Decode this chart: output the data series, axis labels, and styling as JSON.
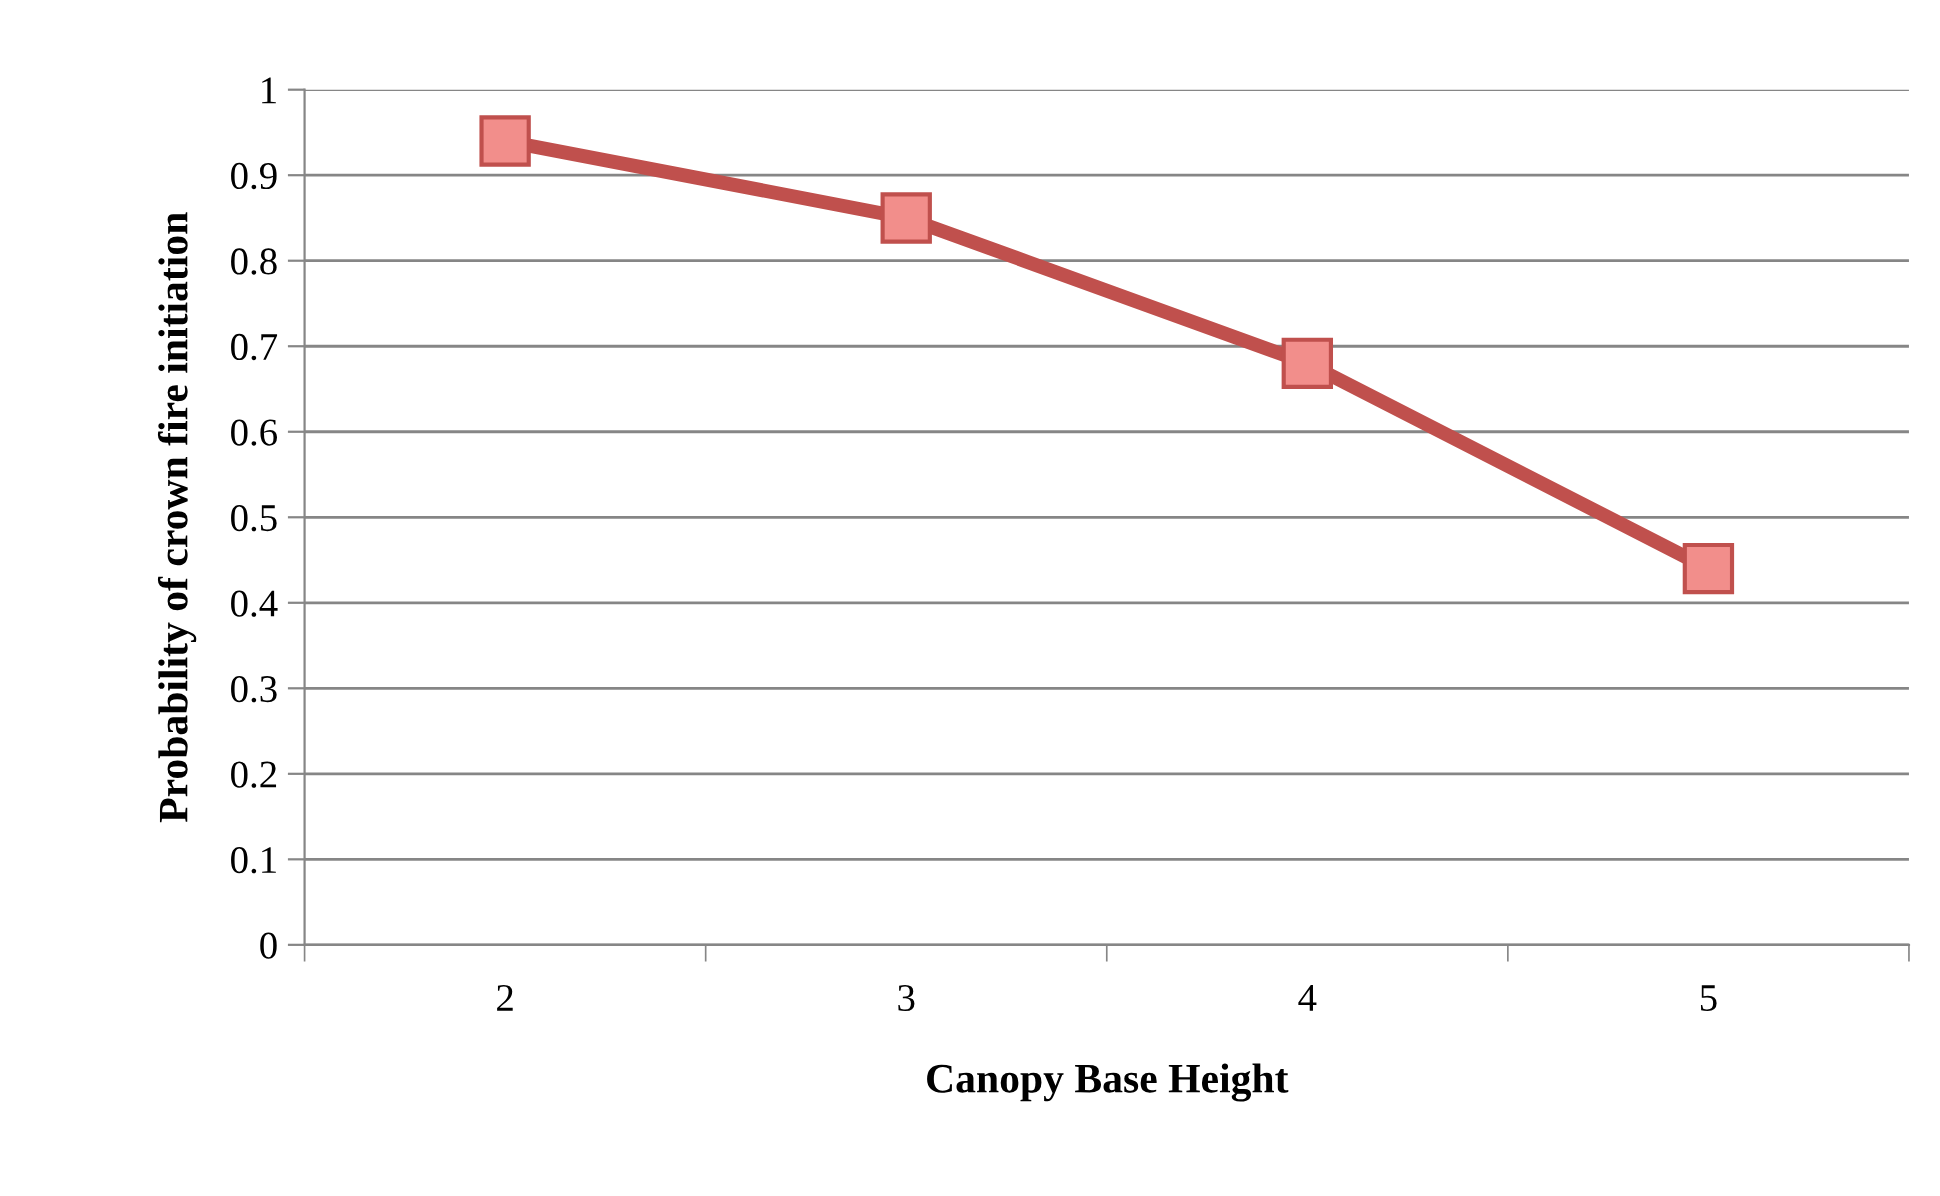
{
  "chart_data": {
    "type": "line",
    "xlabel": "Canopy Base Height",
    "ylabel": "Probability of crown fire initiation",
    "categories": [
      "2",
      "3",
      "4",
      "5"
    ],
    "series": [
      {
        "color": "#c0504d",
        "values": [
          0.94,
          0.85,
          0.68,
          0.44
        ]
      }
    ],
    "ylim": [
      0,
      1
    ],
    "yticks": [
      0,
      0.1,
      0.2,
      0.3,
      0.4,
      0.5,
      0.6,
      0.7,
      0.8,
      0.9,
      1
    ],
    "grid": "y",
    "marker": "square",
    "line_style": "solid",
    "legend": false
  }
}
